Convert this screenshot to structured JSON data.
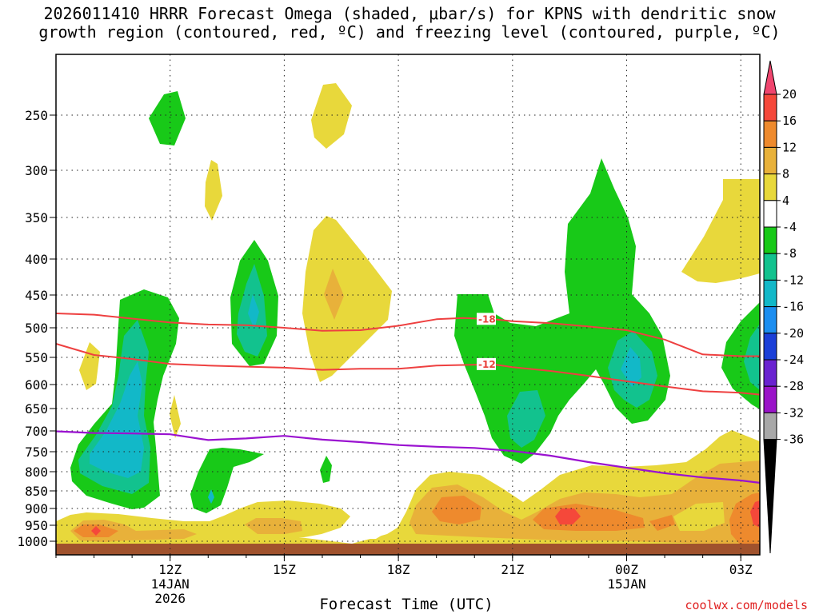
{
  "chart_data": {
    "type": "heatmap",
    "title_line1": "2026011410 HRRR Forecast Omega (shaded, μbar/s) for KPNS with dendritic snow",
    "title_line2": "growth region (contoured, red, ºC) and freezing level (contoured, purple, ºC)",
    "xlabel": "Forecast Time (UTC)",
    "ylabel": "",
    "y_ticks": [
      "250",
      "300",
      "350",
      "400",
      "450",
      "500",
      "550",
      "600",
      "650",
      "700",
      "750",
      "800",
      "850",
      "900",
      "950",
      "1000"
    ],
    "x_ticks": [
      {
        "hour": 12,
        "label": "12Z",
        "sub1": "14JAN",
        "sub2": "2026"
      },
      {
        "hour": 15,
        "label": "15Z",
        "sub1": "",
        "sub2": ""
      },
      {
        "hour": 18,
        "label": "18Z",
        "sub1": "",
        "sub2": ""
      },
      {
        "hour": 21,
        "label": "21Z",
        "sub1": "",
        "sub2": ""
      },
      {
        "hour": 24,
        "label": "00Z",
        "sub1": "15JAN",
        "sub2": ""
      },
      {
        "hour": 27,
        "label": "03Z",
        "sub1": "",
        "sub2": ""
      }
    ],
    "colorbar": {
      "labels": [
        "20",
        "16",
        "12",
        "8",
        "4",
        "-4",
        "-8",
        "-12",
        "-16",
        "-20",
        "-24",
        "-28",
        "-32",
        "-36"
      ],
      "colors": [
        "#f0456e",
        "#f5483a",
        "#ee8a2d",
        "#e8b13a",
        "#e8d83b",
        "#ffffff",
        "#18c918",
        "#12c28e",
        "#12b8c8",
        "#1c8ef0",
        "#1b3fd8",
        "#6a22d0",
        "#9a14c8",
        "#a8a8a8",
        "#000000"
      ]
    },
    "contours": {
      "dendritic_minus18": [
        [
          9,
          478
        ],
        [
          10,
          480
        ],
        [
          11,
          486
        ],
        [
          12,
          492
        ],
        [
          13,
          495
        ],
        [
          14,
          496
        ],
        [
          15,
          500
        ],
        [
          16,
          505
        ],
        [
          17,
          504
        ],
        [
          18,
          497
        ],
        [
          19,
          487
        ],
        [
          19.7,
          485
        ],
        [
          20.5,
          487
        ],
        [
          21,
          490
        ],
        [
          22,
          493
        ],
        [
          23,
          498
        ],
        [
          24,
          504
        ],
        [
          25,
          520
        ],
        [
          26,
          545
        ],
        [
          27,
          548
        ],
        [
          27.5,
          548
        ]
      ],
      "dendritic_minus12": [
        [
          9,
          527
        ],
        [
          10,
          546
        ],
        [
          11,
          553
        ],
        [
          12,
          562
        ],
        [
          13,
          565
        ],
        [
          14,
          567
        ],
        [
          15,
          569
        ],
        [
          16,
          573
        ],
        [
          17,
          571
        ],
        [
          18,
          571
        ],
        [
          19,
          565
        ],
        [
          19.7,
          564
        ],
        [
          20.5,
          563
        ],
        [
          21,
          568
        ],
        [
          22,
          575
        ],
        [
          23,
          584
        ],
        [
          24,
          594
        ],
        [
          25,
          604
        ],
        [
          26,
          614
        ],
        [
          27,
          617
        ],
        [
          27.5,
          621
        ]
      ],
      "freezing_level": [
        [
          9,
          701
        ],
        [
          10,
          705
        ],
        [
          11,
          706
        ],
        [
          12,
          708
        ],
        [
          13,
          722
        ],
        [
          14,
          718
        ],
        [
          15,
          712
        ],
        [
          16,
          721
        ],
        [
          17,
          727
        ],
        [
          18,
          734
        ],
        [
          19,
          738
        ],
        [
          20,
          741
        ],
        [
          21,
          748
        ],
        [
          22,
          760
        ],
        [
          23,
          776
        ],
        [
          24,
          790
        ],
        [
          25,
          804
        ],
        [
          26,
          815
        ],
        [
          27,
          823
        ],
        [
          27.5,
          829
        ]
      ],
      "labels": [
        {
          "text": "-18",
          "hour": 20.1,
          "mb": 487
        },
        {
          "text": "-12",
          "hour": 20.1,
          "mb": 563
        }
      ]
    },
    "xlim_hours": [
      9,
      27.5
    ],
    "ylim_mb": [
      200,
      1025
    ]
  },
  "footer": {
    "credit": "coolwx.com/models"
  }
}
